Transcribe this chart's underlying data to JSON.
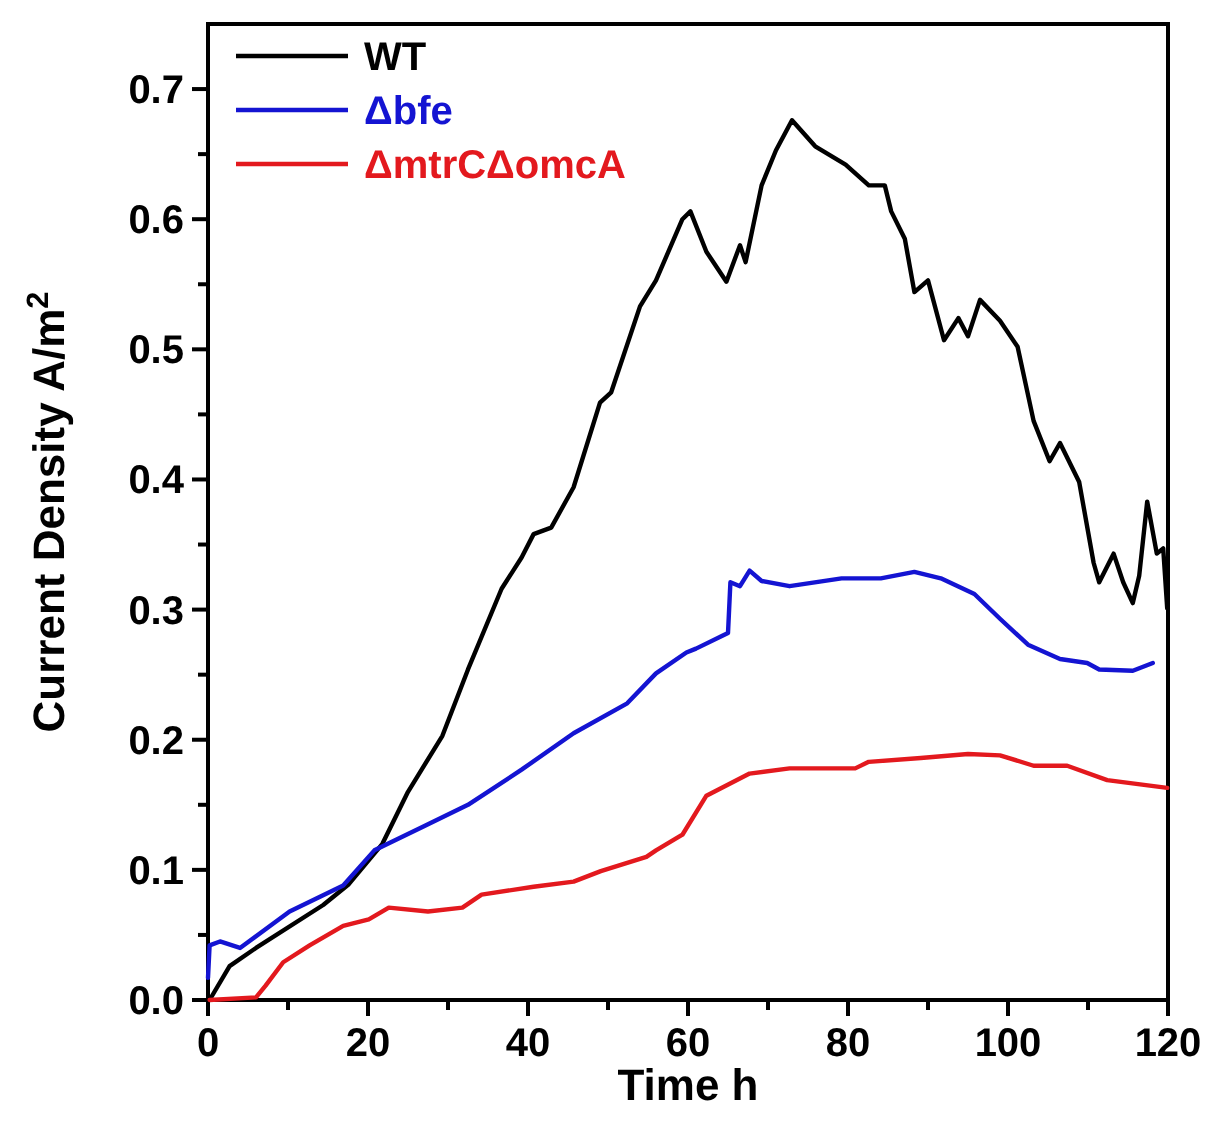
{
  "chart_data": {
    "type": "line",
    "xlabel": "Time h",
    "ylabel": "Current Density A/m$^{2}$",
    "xlim": [
      0,
      120
    ],
    "ylim": [
      0,
      0.75
    ],
    "xticks": [
      0,
      {
        "value": 10,
        "label": null
      },
      20,
      {
        "value": 30,
        "label": null
      },
      40,
      {
        "value": 50,
        "label": null
      },
      60,
      {
        "value": 70,
        "label": null
      },
      80,
      {
        "value": 90,
        "label": null
      },
      100,
      {
        "value": 110,
        "label": null
      },
      120
    ],
    "yticks": [
      {
        "value": 0,
        "label": "0.0"
      },
      {
        "value": 0.05,
        "label": null
      },
      0.1,
      {
        "value": 0.15,
        "label": null
      },
      0.2,
      {
        "value": 0.25,
        "label": null
      },
      0.3,
      {
        "value": 0.35,
        "label": null
      },
      0.4,
      {
        "value": 0.45,
        "label": null
      },
      0.5,
      {
        "value": 0.55,
        "label": null
      },
      0.6,
      {
        "value": 0.65,
        "label": null
      },
      0.7
    ],
    "legend": "top left",
    "grid": false,
    "marker": "none",
    "line_style": "solid",
    "series": [
      {
        "name": "WT",
        "color": "#000000",
        "x": [
          0.2,
          2.7,
          6,
          14.4,
          17.6,
          21.8,
          25,
          29.3,
          32.5,
          36.7,
          39.2,
          40.7,
          42.9,
          45.7,
          49,
          50.4,
          54,
          56,
          59.3,
          60.3,
          62.3,
          64.8,
          66.5,
          67.2,
          69.2,
          71,
          73,
          75.9,
          79.7,
          82.6,
          84.6,
          85.4,
          87.1,
          88.3,
          90,
          92,
          93.8,
          95,
          96.5,
          99,
          101.2,
          103.2,
          105.2,
          106.5,
          108.9,
          110.7,
          111.4,
          113.2,
          114.4,
          115.6,
          116.4,
          117.4,
          118.6,
          119.4,
          119.9
        ],
        "values": [
          0,
          0.026,
          0.04,
          0.073,
          0.089,
          0.12,
          0.16,
          0.203,
          0.254,
          0.316,
          0.34,
          0.358,
          0.363,
          0.394,
          0.459,
          0.467,
          0.533,
          0.553,
          0.6,
          0.606,
          0.575,
          0.552,
          0.58,
          0.567,
          0.626,
          0.653,
          0.676,
          0.656,
          0.642,
          0.626,
          0.626,
          0.606,
          0.585,
          0.544,
          0.553,
          0.507,
          0.524,
          0.51,
          0.538,
          0.522,
          0.502,
          0.445,
          0.414,
          0.428,
          0.398,
          0.336,
          0.321,
          0.343,
          0.321,
          0.305,
          0.326,
          0.383,
          0.343,
          0.347,
          0.301
        ]
      },
      {
        "name": "Δbfe",
        "color": "#1414d2",
        "x": [
          0,
          0.2,
          1.5,
          4,
          10.2,
          16.9,
          20.8,
          26.8,
          32.5,
          39.2,
          45.7,
          52.4,
          56,
          59.8,
          61,
          65,
          65.3,
          66.5,
          67.7,
          69.2,
          72.7,
          79.2,
          84.1,
          88.3,
          91.6,
          95.8,
          99,
          102.5,
          106.5,
          109.9,
          111.4,
          115.6,
          118.1
        ],
        "values": [
          0.017,
          0.042,
          0.045,
          0.04,
          0.068,
          0.088,
          0.115,
          0.133,
          0.15,
          0.177,
          0.205,
          0.228,
          0.251,
          0.267,
          0.27,
          0.282,
          0.321,
          0.318,
          0.33,
          0.322,
          0.318,
          0.324,
          0.324,
          0.329,
          0.324,
          0.312,
          0.293,
          0.273,
          0.262,
          0.259,
          0.254,
          0.253,
          0.259
        ]
      },
      {
        "name": "ΔmtrCΔomcA",
        "color": "#e3191e",
        "x": [
          0.2,
          6,
          7.2,
          9.4,
          12.7,
          16.9,
          20.1,
          22.6,
          27.5,
          31.8,
          34.2,
          40.7,
          45.7,
          49.1,
          54.8,
          56,
          59.3,
          62.3,
          67.7,
          72.7,
          80.9,
          82.6,
          89.1,
          95,
          99,
          103.2,
          107.4,
          112.4,
          119.9
        ],
        "values": [
          0,
          0.002,
          0.011,
          0.029,
          0.042,
          0.057,
          0.062,
          0.071,
          0.068,
          0.071,
          0.081,
          0.087,
          0.091,
          0.099,
          0.11,
          0.115,
          0.127,
          0.157,
          0.174,
          0.178,
          0.178,
          0.183,
          0.186,
          0.189,
          0.188,
          0.18,
          0.18,
          0.169,
          0.163
        ]
      }
    ]
  }
}
